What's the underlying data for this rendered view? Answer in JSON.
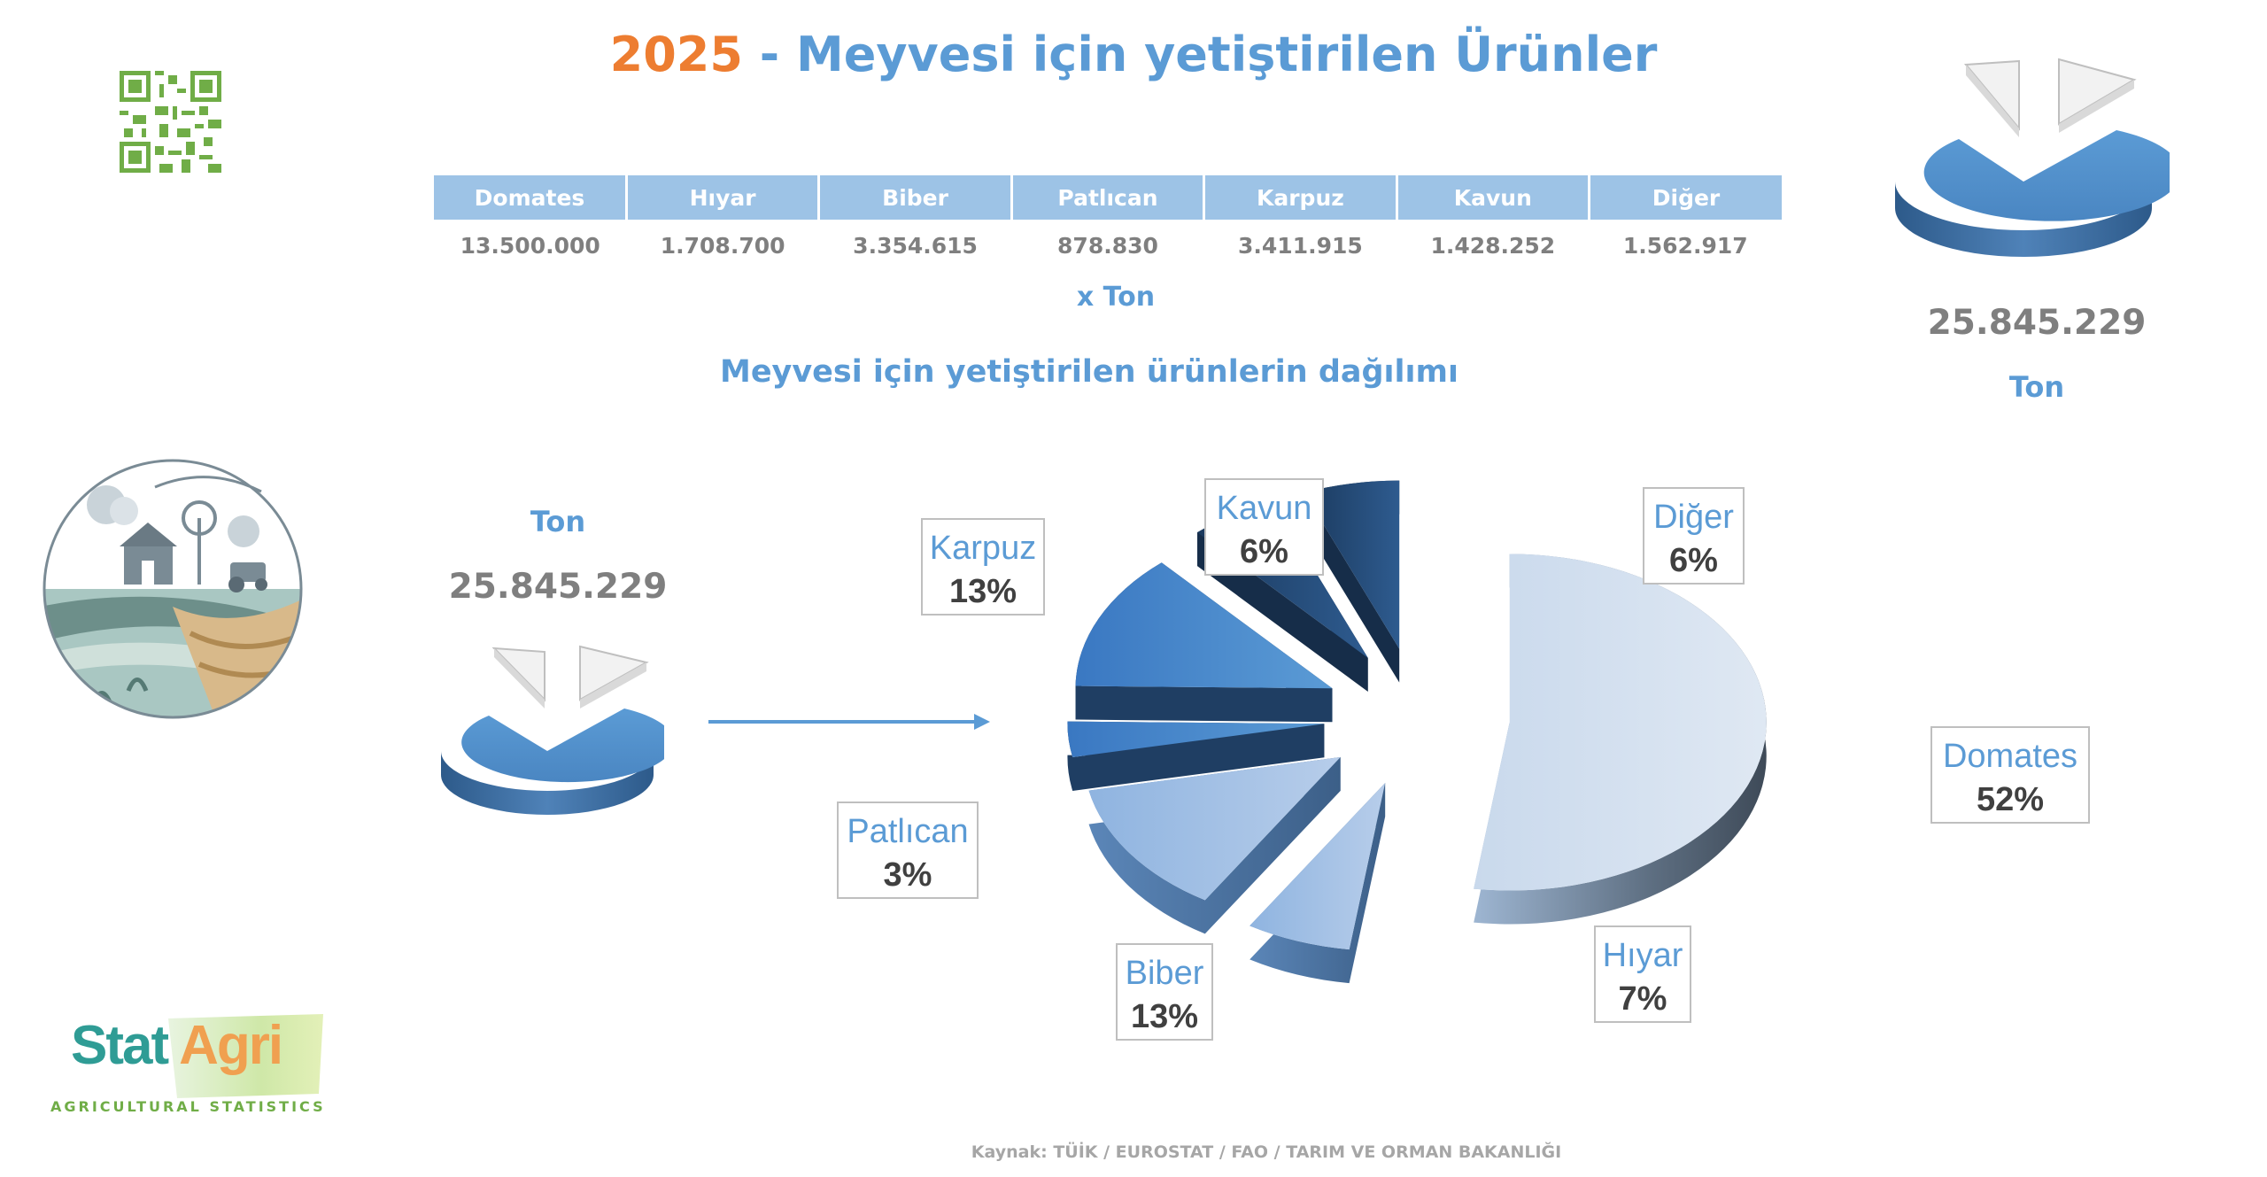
{
  "header": {
    "year": "2025",
    "title_rest": " - Meyvesi için yetiştirilen Ürünler"
  },
  "table": {
    "headers": [
      "Domates",
      "Hıyar",
      "Biber",
      "Patlıcan",
      "Karpuz",
      "Kavun",
      "Diğer"
    ],
    "values": [
      "13.500.000",
      "1.708.700",
      "3.354.615",
      "878.830",
      "3.411.915",
      "1.428.252",
      "1.562.917"
    ],
    "unit": "x  Ton"
  },
  "subtitle": "Meyvesi için yetiştirilen ürünlerin dağılımı",
  "left_total": {
    "unit": "Ton",
    "value": "25.845.229"
  },
  "right_total": {
    "unit": "Ton",
    "value": "25.845.229"
  },
  "source": "Kaynak: TÜİK / EUROSTAT / FAO / TARIM VE ORMAN BAKANLIĞI",
  "logo": {
    "stat": "Stat",
    "agri": "Agri",
    "tagline": "AGRICULTURAL STATISTICS"
  },
  "colors": {
    "accent_blue": "#5b9bd5",
    "accent_orange": "#ed7d31",
    "header_fill": "#9dc3e6",
    "dark_slice": "#1f3e63"
  },
  "icons": [
    "qr-code-icon",
    "farm-illustration-icon",
    "pie-chart-icon"
  ],
  "chart_data": {
    "type": "pie",
    "title": "Meyvesi için yetiştirilen ürünlerin dağılımı",
    "unit": "Ton",
    "total": 25845229,
    "slices": [
      {
        "name": "Domates",
        "value": 13500000,
        "label": "52%"
      },
      {
        "name": "Hıyar",
        "value": 1708700,
        "label": "7%"
      },
      {
        "name": "Biber",
        "value": 3354615,
        "label": "13%"
      },
      {
        "name": "Patlıcan",
        "value": 878830,
        "label": "3%"
      },
      {
        "name": "Karpuz",
        "value": 3411915,
        "label": "13%"
      },
      {
        "name": "Kavun",
        "value": 1428252,
        "label": "6%"
      },
      {
        "name": "Diğer",
        "value": 1562917,
        "label": "6%"
      }
    ]
  }
}
